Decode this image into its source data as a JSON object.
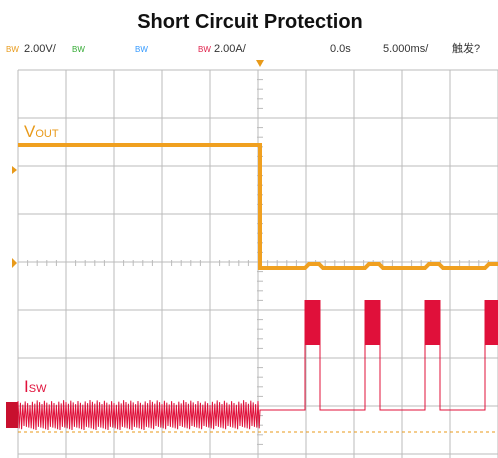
{
  "title": "Short Circuit Protection",
  "header": {
    "ch1_bw": "BW",
    "ch1_scale": "2.00V/",
    "ch2_bw": "BW",
    "ch3_bw": "BW",
    "ch4_bw": "BW",
    "ch4_scale": "2.00A/",
    "delay": "0.0s",
    "timebase": "5.000ms/",
    "trigger": "触发?"
  },
  "traces": {
    "vout": {
      "main": "V",
      "sub": "OUT"
    },
    "isw": {
      "main": "I",
      "sub": "SW"
    }
  }
}
